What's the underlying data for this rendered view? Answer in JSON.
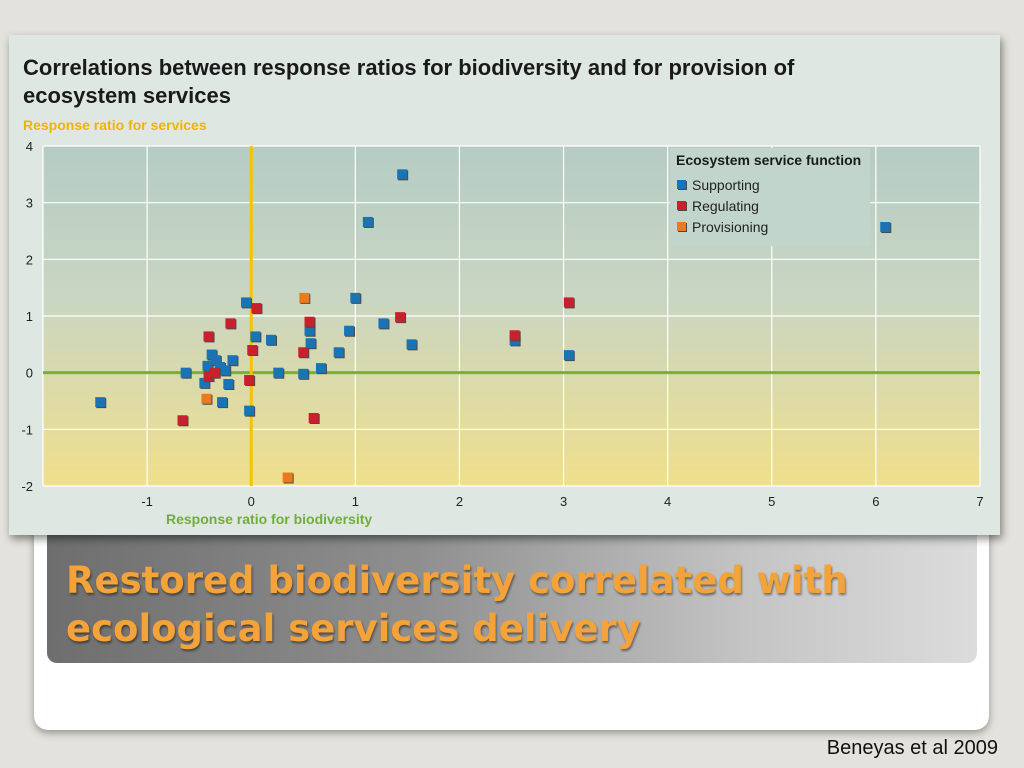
{
  "slide": {
    "title": "Restored biodiversity correlated with ecological services delivery",
    "citation": "Beneyas et al 2009"
  },
  "colors": {
    "supporting": "#1a74b4",
    "regulating": "#c8202c",
    "provisioning": "#ec7a1c",
    "zero_x_line": "#f5c400",
    "zero_y_line": "#7ab030",
    "title_text": "#f4a23a"
  },
  "chart_data": {
    "type": "scatter",
    "title": "Correlations between response ratios for biodiversity and for provision of ecosystem services",
    "xlabel": "Response ratio for biodiversity",
    "ylabel": "Response ratio for services",
    "xlim": [
      -2,
      7
    ],
    "ylim": [
      -2,
      4
    ],
    "xticks": [
      "-1",
      "0",
      "1",
      "2",
      "3",
      "4",
      "5",
      "6",
      "7"
    ],
    "yticks": [
      "4",
      "3",
      "2",
      "1",
      "0",
      "-1",
      "-2"
    ],
    "grid": true,
    "legend_title": "Ecosystem service function",
    "legend_position": "top-right",
    "series": [
      {
        "name": "Supporting",
        "points": [
          [
            -1.45,
            -0.52
          ],
          [
            -0.63,
            0.0
          ],
          [
            -0.45,
            -0.18
          ],
          [
            -0.42,
            0.12
          ],
          [
            -0.38,
            0.32
          ],
          [
            -0.34,
            0.22
          ],
          [
            -0.3,
            0.1
          ],
          [
            -0.28,
            -0.52
          ],
          [
            -0.25,
            0.04
          ],
          [
            -0.22,
            -0.2
          ],
          [
            -0.18,
            0.22
          ],
          [
            -0.05,
            1.24
          ],
          [
            -0.02,
            -0.67
          ],
          [
            0.04,
            0.64
          ],
          [
            0.19,
            0.58
          ],
          [
            0.26,
            0.0
          ],
          [
            0.5,
            -0.02
          ],
          [
            0.56,
            0.74
          ],
          [
            0.57,
            0.52
          ],
          [
            0.67,
            0.08
          ],
          [
            0.84,
            0.36
          ],
          [
            0.94,
            0.74
          ],
          [
            1.0,
            1.32
          ],
          [
            1.12,
            2.66
          ],
          [
            1.27,
            0.87
          ],
          [
            1.45,
            3.5
          ],
          [
            1.54,
            0.5
          ],
          [
            2.53,
            0.57
          ],
          [
            3.05,
            0.31
          ],
          [
            6.09,
            2.57
          ]
        ]
      },
      {
        "name": "Regulating",
        "points": [
          [
            -0.66,
            -0.84
          ],
          [
            -0.41,
            0.64
          ],
          [
            -0.41,
            -0.06
          ],
          [
            -0.35,
            0.0
          ],
          [
            -0.2,
            0.87
          ],
          [
            -0.02,
            -0.13
          ],
          [
            0.01,
            0.4
          ],
          [
            0.05,
            1.14
          ],
          [
            0.5,
            0.36
          ],
          [
            0.56,
            0.9
          ],
          [
            0.6,
            -0.8
          ],
          [
            1.43,
            0.98
          ],
          [
            2.53,
            0.66
          ],
          [
            3.05,
            1.24
          ]
        ]
      },
      {
        "name": "Provisioning",
        "points": [
          [
            -0.43,
            -0.46
          ],
          [
            0.35,
            -1.85
          ],
          [
            0.51,
            1.32
          ]
        ]
      }
    ]
  }
}
